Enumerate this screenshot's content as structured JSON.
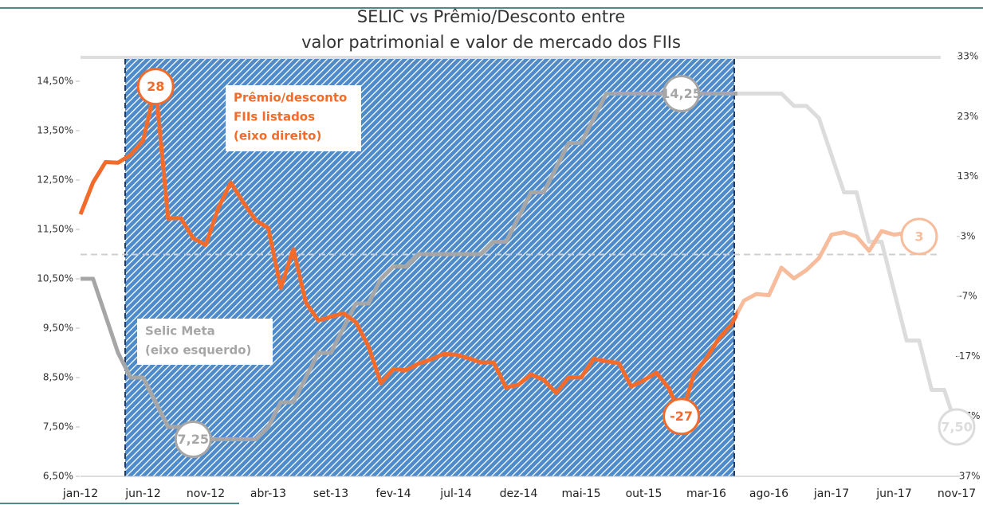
{
  "chart_data": {
    "type": "line",
    "title_lines": [
      "SELIC vs Prêmio/Desconto entre",
      "valor patrimonial e valor de mercado dos FIIs"
    ],
    "categories": [
      "jan-12",
      null,
      null,
      null,
      null,
      "jun-12",
      null,
      null,
      null,
      null,
      "nov-12",
      null,
      null,
      null,
      null,
      "abr-13",
      null,
      null,
      null,
      null,
      "set-13",
      null,
      null,
      null,
      null,
      "fev-14",
      null,
      null,
      null,
      null,
      "jul-14",
      null,
      null,
      null,
      null,
      "dez-14",
      null,
      null,
      null,
      null,
      "mai-15",
      null,
      null,
      null,
      null,
      "out-15",
      null,
      null,
      null,
      null,
      "mar-16",
      null,
      null,
      null,
      null,
      "ago-16",
      null,
      null,
      null,
      null,
      "jan-17",
      null,
      null,
      null,
      null,
      "jun-17",
      null,
      null,
      null,
      null,
      "nov-17"
    ],
    "ylim": [
      6.5,
      15
    ],
    "yticks": [
      {
        "value": 6.5,
        "label": "6,50%"
      },
      {
        "value": 7.5,
        "label": "7,50%"
      },
      {
        "value": 8.5,
        "label": "8,50%"
      },
      {
        "value": 9.5,
        "label": "9,50%"
      },
      {
        "value": 10.5,
        "label": "10,50%"
      },
      {
        "value": 11.5,
        "label": "11,50%"
      },
      {
        "value": 12.5,
        "label": "12,50%"
      },
      {
        "value": 13.5,
        "label": "13,50%"
      },
      {
        "value": 14.5,
        "label": "14,50%"
      }
    ],
    "y2lim": [
      -37,
      33
    ],
    "y2ticks": [
      {
        "value": -37,
        "label": "-37%"
      },
      {
        "value": -27,
        "label": "-27%"
      },
      {
        "value": -17,
        "label": "-17%"
      },
      {
        "value": -7,
        "label": "-7%"
      },
      {
        "value": 3,
        "label": "3%"
      },
      {
        "value": 13,
        "label": "13%"
      },
      {
        "value": 23,
        "label": "23%"
      },
      {
        "value": 33,
        "label": "33%"
      }
    ],
    "series": [
      {
        "name": "Selic Meta",
        "label_lines": [
          "(eixo esquerdo)"
        ],
        "color": "#a6a6a6",
        "faded_color": "#dcdcdc",
        "values": [
          10.5,
          10.5,
          9.75,
          9.0,
          8.5,
          8.5,
          8.0,
          7.5,
          7.5,
          7.25,
          7.25,
          7.25,
          7.25,
          7.25,
          7.25,
          7.5,
          8.0,
          8.0,
          8.5,
          9.0,
          9.0,
          9.5,
          10.0,
          10.0,
          10.5,
          10.75,
          10.75,
          11.0,
          11.0,
          11.0,
          11.0,
          11.0,
          11.0,
          11.25,
          11.25,
          11.75,
          12.25,
          12.25,
          12.75,
          13.25,
          13.25,
          13.75,
          14.25,
          14.25,
          14.25,
          14.25,
          14.25,
          14.25,
          14.25,
          14.25,
          14.25,
          14.25,
          14.25,
          14.25,
          14.25,
          14.25,
          14.25,
          14.0,
          14.0,
          13.75,
          13.0,
          12.25,
          12.25,
          11.25,
          11.25,
          10.25,
          9.25,
          9.25,
          8.25,
          8.25,
          7.5
        ],
        "value_labels": [
          null,
          null,
          null,
          null,
          null,
          null,
          null,
          null,
          null,
          "7,25",
          null,
          null,
          null,
          null,
          null,
          null,
          null,
          null,
          null,
          null,
          null,
          null,
          null,
          null,
          null,
          null,
          null,
          null,
          null,
          null,
          null,
          null,
          null,
          null,
          null,
          null,
          null,
          null,
          null,
          null,
          null,
          null,
          null,
          null,
          null,
          null,
          null,
          null,
          "14,25",
          null,
          null,
          null,
          null,
          null,
          null,
          null,
          null,
          null,
          null,
          null,
          null,
          null,
          null,
          null,
          null,
          null,
          null,
          null,
          null,
          null,
          "7,50"
        ]
      },
      {
        "name": "Prêmio/desconto",
        "label_lines": [
          "FIIs listados",
          "(eixo direito)"
        ],
        "color": "#f26b2a",
        "faded_color": "#f7bc9c",
        "axis": "y2",
        "values": [
          6.7,
          12,
          15.4,
          15.3,
          16.6,
          19,
          28,
          6,
          6.1,
          2.7,
          1.6,
          7.7,
          12,
          8.7,
          5.7,
          4.4,
          -5.6,
          0.9,
          -8,
          -11,
          -10.4,
          -9.8,
          -11.3,
          -15.3,
          -21.5,
          -19.1,
          -19.3,
          -18.2,
          -17.5,
          -16.6,
          -16.7,
          -17.3,
          -18,
          -18,
          -22.2,
          -21.7,
          -20,
          -20.9,
          -23.1,
          -20.5,
          -20.5,
          -17.4,
          -17.8,
          -18.1,
          -22,
          -21,
          -19.7,
          -22.3,
          -27,
          -20,
          -17.3,
          -14,
          -11.7,
          -7.7,
          -6.6,
          -6.8,
          -2.2,
          -4,
          -2.6,
          -0.6,
          3.3,
          3.7,
          3,
          0.6,
          3.9,
          3.3,
          3.6,
          3,
          null,
          null,
          null
        ],
        "value_labels": [
          null,
          null,
          null,
          null,
          null,
          null,
          "28",
          null,
          null,
          null,
          null,
          null,
          null,
          null,
          null,
          null,
          null,
          null,
          null,
          null,
          null,
          null,
          null,
          null,
          null,
          null,
          null,
          null,
          null,
          null,
          null,
          null,
          null,
          null,
          null,
          null,
          null,
          null,
          null,
          null,
          null,
          null,
          null,
          null,
          null,
          null,
          null,
          null,
          "-27",
          null,
          null,
          null,
          null,
          null,
          null,
          null,
          null,
          null,
          null,
          null,
          null,
          null,
          null,
          null,
          null,
          null,
          null,
          "3",
          null,
          null,
          null
        ]
      }
    ]
  }
}
